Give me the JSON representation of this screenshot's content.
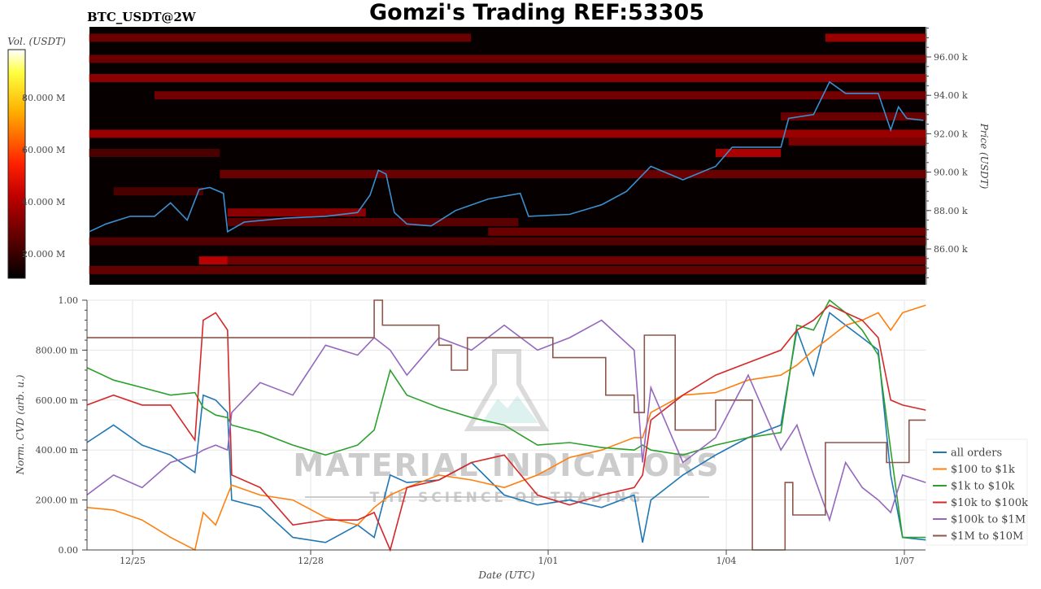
{
  "header": {
    "title": "Gomzi's Trading REF:53305",
    "subtitle": "BTC_USDT@2W"
  },
  "watermark": {
    "brand": "MATERIAL INDICATORS",
    "tagline": "THE SCIENCE OF TRADING"
  },
  "chart_data": [
    {
      "type": "heatmap",
      "title": "BTC_USDT@2W",
      "xlabel": "",
      "ylabel": "Price (USDT)",
      "x_unit": "days since 12/25 00:00 UTC",
      "xlim": [
        -0.73,
        13.36
      ],
      "ylim": [
        84.14,
        97.57
      ],
      "yticks": [
        86,
        88,
        90,
        92,
        94,
        96
      ],
      "ytick_labels": [
        "86.00 k",
        "88.00 k",
        "90.00 k",
        "92.00 k",
        "94.00 k",
        "96.00 k"
      ],
      "colorbar": {
        "label": "Vol. (USDT)",
        "range": [
          10.6,
          98
        ],
        "ticks": [
          20,
          40,
          60,
          80
        ],
        "tick_labels": [
          "20.000 M",
          "40.000 M",
          "60.000 M",
          "80.000 M"
        ],
        "colormap": "hot"
      },
      "bands_unit": "price in k USDT, volume in M USDT",
      "bands": [
        {
          "price": 97.0,
          "t0": -0.73,
          "t1": 5.7,
          "vol": 24
        },
        {
          "price": 97.0,
          "t0": 11.67,
          "t1": 13.36,
          "vol": 30
        },
        {
          "price": 95.9,
          "t0": -0.73,
          "t1": 13.36,
          "vol": 24
        },
        {
          "price": 94.9,
          "t0": -0.73,
          "t1": 13.36,
          "vol": 28
        },
        {
          "price": 94.0,
          "t0": 0.37,
          "t1": 13.36,
          "vol": 25
        },
        {
          "price": 92.9,
          "t0": 10.92,
          "t1": 13.36,
          "vol": 24
        },
        {
          "price": 92.0,
          "t0": -0.73,
          "t1": 13.36,
          "vol": 30
        },
        {
          "price": 91.6,
          "t0": 11.05,
          "t1": 13.36,
          "vol": 26
        },
        {
          "price": 91.0,
          "t0": -0.73,
          "t1": 1.47,
          "vol": 20
        },
        {
          "price": 91.0,
          "t0": 9.82,
          "t1": 10.92,
          "vol": 32
        },
        {
          "price": 89.9,
          "t0": 1.47,
          "t1": 13.36,
          "vol": 24
        },
        {
          "price": 89.0,
          "t0": -0.32,
          "t1": 1.19,
          "vol": 20
        },
        {
          "price": 87.9,
          "t0": 1.6,
          "t1": 3.93,
          "vol": 28
        },
        {
          "price": 87.4,
          "t0": 1.6,
          "t1": 6.5,
          "vol": 22
        },
        {
          "price": 86.9,
          "t0": 5.99,
          "t1": 13.36,
          "vol": 24
        },
        {
          "price": 86.4,
          "t0": -0.73,
          "t1": 13.36,
          "vol": 21
        },
        {
          "price": 85.4,
          "t0": 1.12,
          "t1": 1.6,
          "vol": 34
        },
        {
          "price": 85.4,
          "t0": 1.6,
          "t1": 13.36,
          "vol": 25
        },
        {
          "price": 84.9,
          "t0": -0.73,
          "t1": 13.36,
          "vol": 23
        }
      ],
      "price_line": {
        "name": "price",
        "color": "#3a8fd0",
        "t": [
          -0.73,
          -0.45,
          -0.04,
          0.37,
          0.64,
          0.92,
          1.12,
          1.3,
          1.53,
          1.6,
          1.88,
          2.56,
          3.25,
          3.79,
          4.0,
          4.14,
          4.27,
          4.41,
          4.62,
          5.03,
          5.44,
          5.99,
          6.53,
          6.67,
          7.36,
          7.9,
          8.32,
          8.73,
          9.27,
          9.82,
          10.1,
          10.92,
          11.05,
          11.47,
          11.74,
          12.01,
          12.56,
          12.77,
          12.9,
          13.04,
          13.32
        ],
        "values": [
          86.9,
          87.3,
          87.7,
          87.7,
          88.4,
          87.5,
          89.1,
          89.2,
          88.9,
          86.9,
          87.4,
          87.6,
          87.7,
          87.9,
          88.8,
          90.1,
          89.9,
          87.9,
          87.3,
          87.2,
          88.0,
          88.6,
          88.9,
          87.7,
          87.8,
          88.3,
          89.0,
          90.3,
          89.6,
          90.3,
          91.3,
          91.3,
          92.8,
          93.0,
          94.7,
          94.1,
          94.1,
          92.2,
          93.4,
          92.8,
          92.7
        ]
      }
    },
    {
      "type": "line",
      "xlabel": "Date (UTC)",
      "ylabel": "Norm. CVD (arb. u.)",
      "x_unit": "days since 12/25 00:00 UTC",
      "xlim": [
        -0.77,
        13.36
      ],
      "ylim": [
        0,
        1
      ],
      "xticks": [
        0,
        3,
        7,
        10,
        13
      ],
      "xtick_labels": [
        "12/25",
        "12/28",
        "1/01",
        "1/04",
        "1/07"
      ],
      "yticks": [
        0,
        0.2,
        0.4,
        0.6,
        0.8,
        1.0
      ],
      "ytick_labels": [
        "0.00",
        "200.00 m",
        "400.00 m",
        "600.00 m",
        "800.00 m",
        "1.00"
      ],
      "grid": true,
      "legend": "right",
      "x": [
        -0.77,
        -0.32,
        0.16,
        0.64,
        1.05,
        1.19,
        1.4,
        1.6,
        1.67,
        2.15,
        2.7,
        3.25,
        3.79,
        4.07,
        4.34,
        4.62,
        5.16,
        5.71,
        6.26,
        6.82,
        7.36,
        7.9,
        8.45,
        8.59,
        8.73,
        9.27,
        9.82,
        10.37,
        10.92,
        11.19,
        11.47,
        11.74,
        12.01,
        12.29,
        12.56,
        12.77,
        12.97,
        13.36
      ],
      "series": [
        {
          "name": "all orders",
          "color": "#1f77b4",
          "values": [
            0.43,
            0.5,
            0.42,
            0.38,
            0.31,
            0.62,
            0.6,
            0.55,
            0.2,
            0.17,
            0.05,
            0.03,
            0.1,
            0.05,
            0.3,
            0.27,
            0.28,
            0.35,
            0.22,
            0.18,
            0.2,
            0.17,
            0.22,
            0.03,
            0.2,
            0.3,
            0.38,
            0.45,
            0.5,
            0.88,
            0.7,
            0.95,
            0.9,
            0.85,
            0.8,
            0.3,
            0.05,
            0.04
          ]
        },
        {
          "name": "$100 to $1k",
          "color": "#ff7f0e",
          "values": [
            0.17,
            0.16,
            0.12,
            0.05,
            0.0,
            0.15,
            0.1,
            0.22,
            0.26,
            0.22,
            0.2,
            0.13,
            0.1,
            0.17,
            0.22,
            0.25,
            0.3,
            0.28,
            0.25,
            0.3,
            0.37,
            0.4,
            0.45,
            0.45,
            0.55,
            0.62,
            0.63,
            0.68,
            0.7,
            0.74,
            0.8,
            0.85,
            0.9,
            0.92,
            0.95,
            0.88,
            0.95,
            0.98
          ]
        },
        {
          "name": "$1k to $10k",
          "color": "#2ca02c",
          "values": [
            0.73,
            0.68,
            0.65,
            0.62,
            0.63,
            0.57,
            0.54,
            0.53,
            0.5,
            0.47,
            0.42,
            0.38,
            0.42,
            0.48,
            0.72,
            0.62,
            0.57,
            0.53,
            0.5,
            0.42,
            0.43,
            0.41,
            0.4,
            0.42,
            0.4,
            0.38,
            0.42,
            0.45,
            0.47,
            0.9,
            0.88,
            1.0,
            0.95,
            0.88,
            0.78,
            0.4,
            0.05,
            0.05
          ]
        },
        {
          "name": "$10k to $100k",
          "color": "#d62728",
          "values": [
            0.58,
            0.62,
            0.58,
            0.58,
            0.44,
            0.92,
            0.95,
            0.88,
            0.3,
            0.25,
            0.1,
            0.12,
            0.12,
            0.15,
            0.0,
            0.25,
            0.28,
            0.35,
            0.38,
            0.22,
            0.18,
            0.22,
            0.25,
            0.3,
            0.52,
            0.62,
            0.7,
            0.75,
            0.8,
            0.88,
            0.92,
            0.98,
            0.95,
            0.92,
            0.85,
            0.6,
            0.58,
            0.56
          ]
        },
        {
          "name": "$100k to $1M",
          "color": "#9467bd",
          "values": [
            0.22,
            0.3,
            0.25,
            0.35,
            0.38,
            0.4,
            0.42,
            0.4,
            0.55,
            0.67,
            0.62,
            0.82,
            0.78,
            0.85,
            0.8,
            0.7,
            0.85,
            0.8,
            0.9,
            0.8,
            0.85,
            0.92,
            0.8,
            0.35,
            0.65,
            0.35,
            0.45,
            0.7,
            0.4,
            0.5,
            0.3,
            0.12,
            0.35,
            0.25,
            0.2,
            0.15,
            0.3,
            0.27
          ]
        },
        {
          "name": "$1M to $10M",
          "color": "#8c564b",
          "step": true,
          "x": [
            -0.77,
            4.07,
            4.21,
            5.16,
            5.37,
            5.64,
            7.08,
            7.97,
            8.45,
            8.62,
            9.14,
            9.82,
            10.44,
            10.99,
            11.12,
            11.67,
            12.7,
            13.08,
            13.36
          ],
          "values": [
            0.85,
            1.0,
            0.9,
            0.82,
            0.72,
            0.85,
            0.77,
            0.62,
            0.55,
            0.86,
            0.48,
            0.6,
            0.0,
            0.27,
            0.14,
            0.43,
            0.35,
            0.52,
            0.52
          ]
        }
      ]
    }
  ]
}
